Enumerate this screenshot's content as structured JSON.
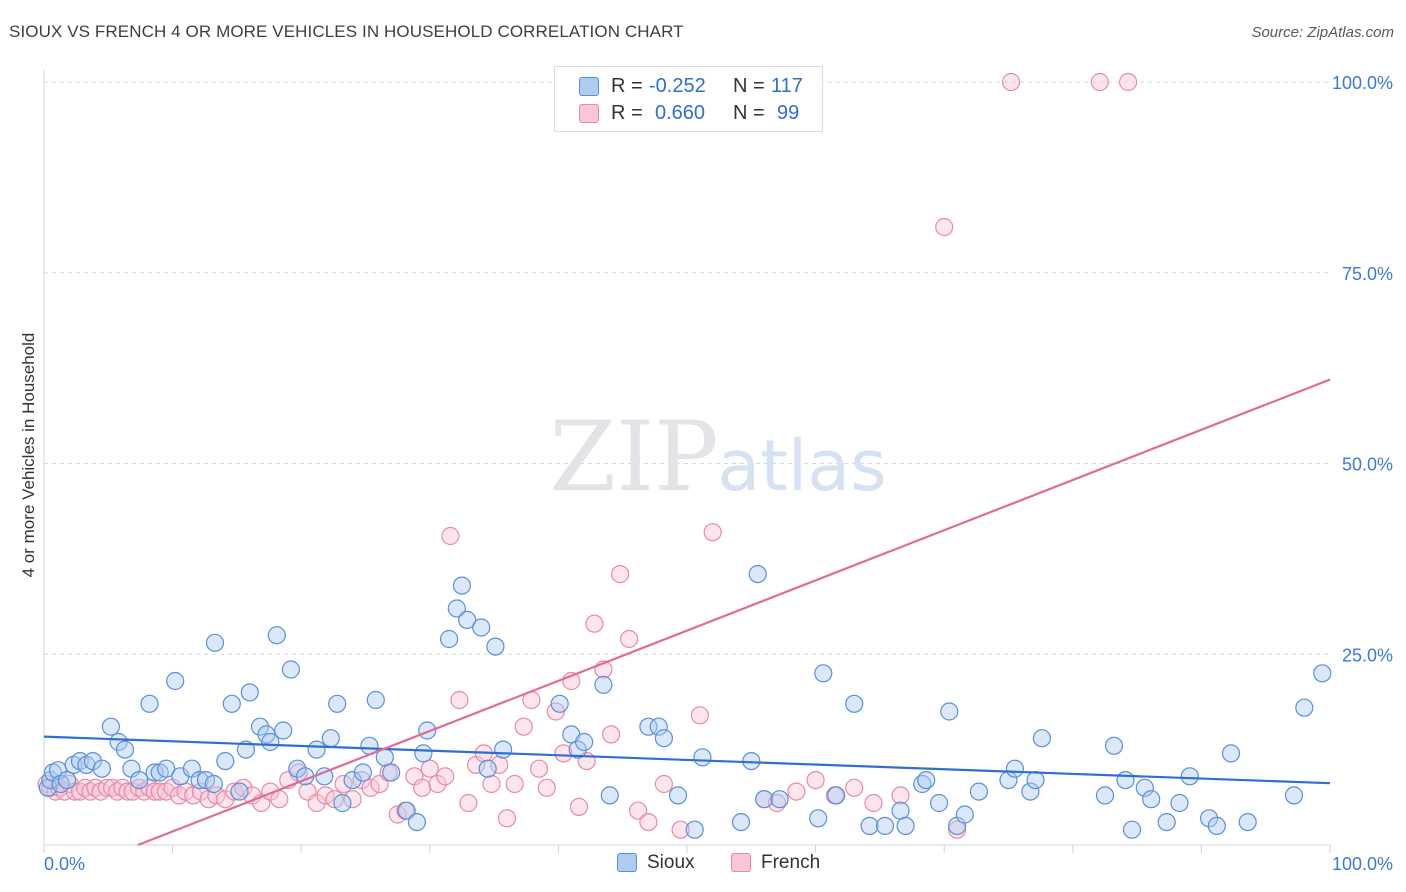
{
  "header": {
    "title": "SIOUX VS FRENCH 4 OR MORE VEHICLES IN HOUSEHOLD CORRELATION CHART",
    "source": "Source: ZipAtlas.com"
  },
  "watermark": {
    "zip": "ZIP",
    "atlas": "atlas"
  },
  "legend": {
    "rows": [
      {
        "r_label": "R =",
        "r_value": "-0.252",
        "n_label": "N =",
        "n_value": "117",
        "color": "#5b8fd9"
      },
      {
        "r_label": "R =",
        "r_value": "0.660",
        "n_label": "N =",
        "n_value": "99",
        "color": "#e88aa8"
      }
    ]
  },
  "bottom_legend": {
    "items": [
      "Sioux",
      "French"
    ]
  },
  "colors": {
    "sioux_fill": "#aecbf2",
    "sioux_stroke": "#5b8fd9",
    "sioux_line": "#2f6fd0",
    "french_fill": "#f9c6d6",
    "french_stroke": "#e88aa8",
    "french_line": "#e06b93",
    "tick_label": "#3c78d8"
  },
  "chart_data": {
    "type": "scatter",
    "title": "SIOUX VS FRENCH 4 OR MORE VEHICLES IN HOUSEHOLD CORRELATION CHART",
    "xlabel": "",
    "ylabel": "4 or more Vehicles in Household",
    "xlim": [
      0,
      100
    ],
    "ylim": [
      0,
      102
    ],
    "x_tick_labels": [
      "0.0%",
      "100.0%"
    ],
    "y_ticks": [
      25,
      50,
      75,
      100
    ],
    "y_tick_labels": [
      "25.0%",
      "50.0%",
      "75.0%",
      "100.0%"
    ],
    "grid": true,
    "legend": "top-center",
    "series": [
      {
        "name": "Sioux",
        "r": -0.252,
        "n": 117,
        "trend": {
          "x": [
            0,
            100
          ],
          "y": [
            14.2,
            8.1
          ]
        },
        "points": [
          [
            0.3,
            7.5
          ],
          [
            0.5,
            8.5
          ],
          [
            0.7,
            9.5
          ],
          [
            1.1,
            9.8
          ],
          [
            1.3,
            8.0
          ],
          [
            1.8,
            8.5
          ],
          [
            2.3,
            10.5
          ],
          [
            2.8,
            11.0
          ],
          [
            3.3,
            10.5
          ],
          [
            3.8,
            11.0
          ],
          [
            4.5,
            10.0
          ],
          [
            5.2,
            15.5
          ],
          [
            5.8,
            13.5
          ],
          [
            6.3,
            12.5
          ],
          [
            6.8,
            10.0
          ],
          [
            7.4,
            8.5
          ],
          [
            8.2,
            18.5
          ],
          [
            8.6,
            9.5
          ],
          [
            9.0,
            9.5
          ],
          [
            9.5,
            10.0
          ],
          [
            10.2,
            21.5
          ],
          [
            10.6,
            9.0
          ],
          [
            11.5,
            10.0
          ],
          [
            12.1,
            8.5
          ],
          [
            12.6,
            8.5
          ],
          [
            13.2,
            8.0
          ],
          [
            13.3,
            26.5
          ],
          [
            14.1,
            11.0
          ],
          [
            14.6,
            18.5
          ],
          [
            15.2,
            7.0
          ],
          [
            15.7,
            12.5
          ],
          [
            16.0,
            20.0
          ],
          [
            16.8,
            15.5
          ],
          [
            17.3,
            14.5
          ],
          [
            17.6,
            13.5
          ],
          [
            18.1,
            27.5
          ],
          [
            18.6,
            15.0
          ],
          [
            19.2,
            23.0
          ],
          [
            19.7,
            10.0
          ],
          [
            20.3,
            9.0
          ],
          [
            21.2,
            12.5
          ],
          [
            21.8,
            9.0
          ],
          [
            22.3,
            14.0
          ],
          [
            22.8,
            18.5
          ],
          [
            23.2,
            5.5
          ],
          [
            24.0,
            8.5
          ],
          [
            24.8,
            9.5
          ],
          [
            25.3,
            13.0
          ],
          [
            25.8,
            19.0
          ],
          [
            26.5,
            11.5
          ],
          [
            27.0,
            9.5
          ],
          [
            28.2,
            4.5
          ],
          [
            29.0,
            3.0
          ],
          [
            29.5,
            12.0
          ],
          [
            29.8,
            15.0
          ],
          [
            31.5,
            27.0
          ],
          [
            32.1,
            31.0
          ],
          [
            32.5,
            34.0
          ],
          [
            32.9,
            29.5
          ],
          [
            34.0,
            28.5
          ],
          [
            34.5,
            10.0
          ],
          [
            35.1,
            26.0
          ],
          [
            35.7,
            12.5
          ],
          [
            40.1,
            18.5
          ],
          [
            41.0,
            14.5
          ],
          [
            41.5,
            12.5
          ],
          [
            42.0,
            13.5
          ],
          [
            43.5,
            21.0
          ],
          [
            44.0,
            6.5
          ],
          [
            47.0,
            15.5
          ],
          [
            47.8,
            15.5
          ],
          [
            48.2,
            14.0
          ],
          [
            49.3,
            6.5
          ],
          [
            50.6,
            2.0
          ],
          [
            51.2,
            11.5
          ],
          [
            54.2,
            3.0
          ],
          [
            55.0,
            11.0
          ],
          [
            55.5,
            35.5
          ],
          [
            56.0,
            6.0
          ],
          [
            57.2,
            6.0
          ],
          [
            60.2,
            3.5
          ],
          [
            60.6,
            22.5
          ],
          [
            61.6,
            6.5
          ],
          [
            63.0,
            18.5
          ],
          [
            64.2,
            2.5
          ],
          [
            65.4,
            2.5
          ],
          [
            66.6,
            4.5
          ],
          [
            67.0,
            2.5
          ],
          [
            68.3,
            8.0
          ],
          [
            68.6,
            8.5
          ],
          [
            69.6,
            5.5
          ],
          [
            70.4,
            17.5
          ],
          [
            71.0,
            2.5
          ],
          [
            71.6,
            4.0
          ],
          [
            72.7,
            7.0
          ],
          [
            75.0,
            8.5
          ],
          [
            75.5,
            10.0
          ],
          [
            76.7,
            7.0
          ],
          [
            77.1,
            8.5
          ],
          [
            77.6,
            14.0
          ],
          [
            82.5,
            6.5
          ],
          [
            83.2,
            13.0
          ],
          [
            84.1,
            8.5
          ],
          [
            84.6,
            2.0
          ],
          [
            85.6,
            7.5
          ],
          [
            86.1,
            6.0
          ],
          [
            87.3,
            3.0
          ],
          [
            88.3,
            5.5
          ],
          [
            89.1,
            9.0
          ],
          [
            90.6,
            3.5
          ],
          [
            91.2,
            2.5
          ],
          [
            92.3,
            12.0
          ],
          [
            93.6,
            3.0
          ],
          [
            97.2,
            6.5
          ],
          [
            98.0,
            18.0
          ],
          [
            99.4,
            22.5
          ]
        ]
      },
      {
        "name": "French",
        "r": 0.66,
        "n": 99,
        "trend": {
          "x": [
            7.3,
            100
          ],
          "y": [
            0,
            61.0
          ]
        },
        "points": [
          [
            0.2,
            8.0
          ],
          [
            0.5,
            7.5
          ],
          [
            0.9,
            7.0
          ],
          [
            1.2,
            7.5
          ],
          [
            1.6,
            7.0
          ],
          [
            2.0,
            8.0
          ],
          [
            2.4,
            7.0
          ],
          [
            2.8,
            7.0
          ],
          [
            3.2,
            7.5
          ],
          [
            3.6,
            7.0
          ],
          [
            4.0,
            7.5
          ],
          [
            4.4,
            7.0
          ],
          [
            4.9,
            7.5
          ],
          [
            5.3,
            7.5
          ],
          [
            5.7,
            7.0
          ],
          [
            6.1,
            7.5
          ],
          [
            6.5,
            7.0
          ],
          [
            6.9,
            7.0
          ],
          [
            7.4,
            7.5
          ],
          [
            7.8,
            7.0
          ],
          [
            8.2,
            7.5
          ],
          [
            8.6,
            7.0
          ],
          [
            9.0,
            7.0
          ],
          [
            9.5,
            7.0
          ],
          [
            10.0,
            7.5
          ],
          [
            10.5,
            6.5
          ],
          [
            11.0,
            7.0
          ],
          [
            11.6,
            6.5
          ],
          [
            12.2,
            7.0
          ],
          [
            12.8,
            6.0
          ],
          [
            13.4,
            6.5
          ],
          [
            14.1,
            6.0
          ],
          [
            14.8,
            7.0
          ],
          [
            15.5,
            7.5
          ],
          [
            16.2,
            6.5
          ],
          [
            16.9,
            5.5
          ],
          [
            17.6,
            7.0
          ],
          [
            18.3,
            6.0
          ],
          [
            19.0,
            8.5
          ],
          [
            19.8,
            9.5
          ],
          [
            20.5,
            7.0
          ],
          [
            21.2,
            5.5
          ],
          [
            21.9,
            6.5
          ],
          [
            22.6,
            6.0
          ],
          [
            23.3,
            8.0
          ],
          [
            24.0,
            6.0
          ],
          [
            24.7,
            8.5
          ],
          [
            25.4,
            7.5
          ],
          [
            26.1,
            8.0
          ],
          [
            26.8,
            9.5
          ],
          [
            27.5,
            4.0
          ],
          [
            28.1,
            4.5
          ],
          [
            28.8,
            9.0
          ],
          [
            29.4,
            7.5
          ],
          [
            30.0,
            10.0
          ],
          [
            30.6,
            8.0
          ],
          [
            31.2,
            9.0
          ],
          [
            31.6,
            40.5
          ],
          [
            32.3,
            19.0
          ],
          [
            33.0,
            5.5
          ],
          [
            33.6,
            10.5
          ],
          [
            34.2,
            12.0
          ],
          [
            34.8,
            8.0
          ],
          [
            35.4,
            10.5
          ],
          [
            36.0,
            3.5
          ],
          [
            36.6,
            8.0
          ],
          [
            37.3,
            15.5
          ],
          [
            37.9,
            19.0
          ],
          [
            38.5,
            10.0
          ],
          [
            39.1,
            7.5
          ],
          [
            39.8,
            17.5
          ],
          [
            40.4,
            12.0
          ],
          [
            41.0,
            21.5
          ],
          [
            41.6,
            5.0
          ],
          [
            42.2,
            11.0
          ],
          [
            42.8,
            29.0
          ],
          [
            43.5,
            23.0
          ],
          [
            44.1,
            14.5
          ],
          [
            44.8,
            35.5
          ],
          [
            45.5,
            27.0
          ],
          [
            46.2,
            4.5
          ],
          [
            47.0,
            3.0
          ],
          [
            48.2,
            8.0
          ],
          [
            49.5,
            2.0
          ],
          [
            51.0,
            17.0
          ],
          [
            52.0,
            41.0
          ],
          [
            66.6,
            6.5
          ],
          [
            71.0,
            2.0
          ],
          [
            75.2,
            100.0
          ],
          [
            82.1,
            100.0
          ],
          [
            84.3,
            100.0
          ],
          [
            70.0,
            81.0
          ],
          [
            56.0,
            6.0
          ],
          [
            57.0,
            5.5
          ],
          [
            58.5,
            7.0
          ],
          [
            60.0,
            8.5
          ],
          [
            61.5,
            6.5
          ],
          [
            63.0,
            7.5
          ],
          [
            64.5,
            5.5
          ]
        ]
      }
    ]
  }
}
